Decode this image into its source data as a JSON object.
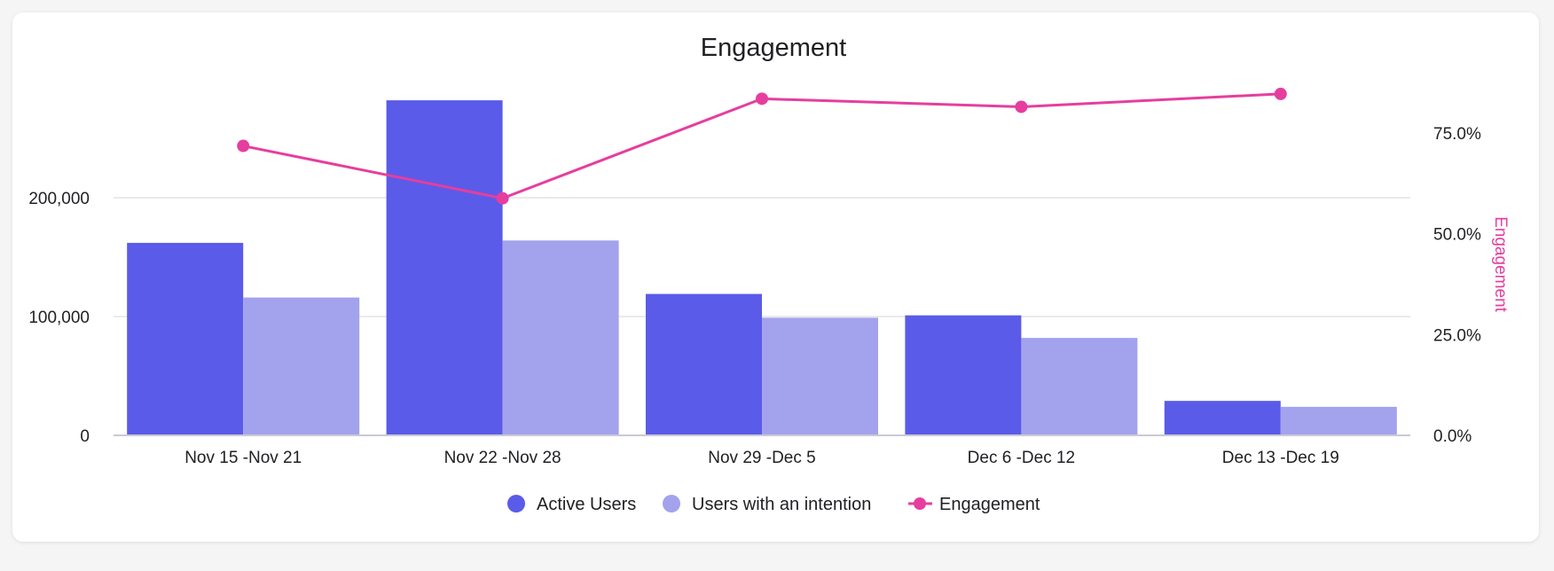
{
  "chart_data": {
    "type": "bar",
    "title": "Engagement",
    "categories": [
      "Nov 15 -Nov 21",
      "Nov 22 -Nov 28",
      "Nov 29 -Dec 5",
      "Dec 6 -Dec 12",
      "Dec 13 -Dec 19"
    ],
    "series": [
      {
        "name": "Active Users",
        "type": "bar",
        "axis": "left",
        "color": "#5a5be8",
        "values": [
          162000,
          282000,
          119000,
          101000,
          29000
        ]
      },
      {
        "name": "Users with an intention",
        "type": "bar",
        "axis": "left",
        "color": "#a3a2ed",
        "values": [
          116000,
          164000,
          99000,
          82000,
          24000
        ]
      },
      {
        "name": "Engagement",
        "type": "line",
        "axis": "right",
        "color": "#e63e9e",
        "values": [
          71.8,
          58.8,
          83.5,
          81.5,
          84.7
        ]
      }
    ],
    "y_left": {
      "ylim": [
        0,
        300000
      ],
      "ticks": [
        0,
        100000,
        200000
      ],
      "tick_labels": [
        "0",
        "100,000",
        "200,000"
      ]
    },
    "y_right": {
      "label": "Engagement",
      "ylim": [
        0,
        100
      ],
      "ticks": [
        0,
        25,
        50,
        75
      ],
      "tick_labels": [
        "0.0%",
        "25.0%",
        "50.0%",
        "75.0%"
      ]
    },
    "grid": true,
    "legend_position": "bottom"
  }
}
